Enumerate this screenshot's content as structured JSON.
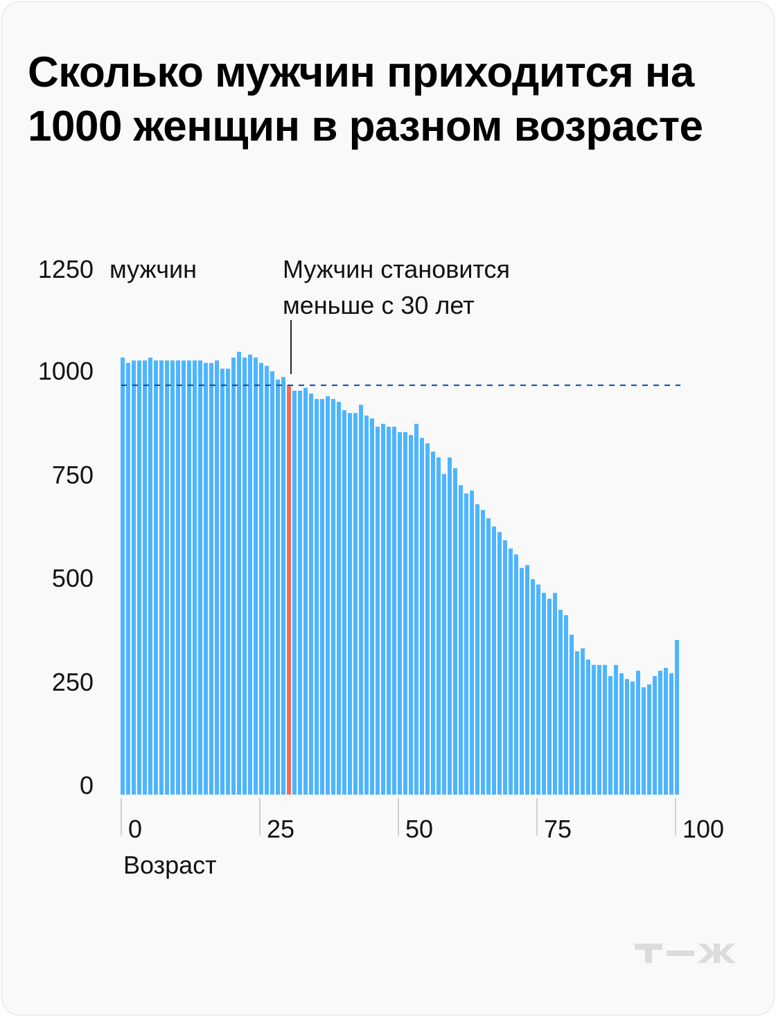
{
  "chart_data": {
    "type": "bar",
    "title": "Сколько мужчин приходится на 1000 женщин в разном возрасте",
    "ylabel": "мужчин",
    "xlabel": "Возраст",
    "ylim": [
      0,
      1250
    ],
    "xlim": [
      0,
      100
    ],
    "y_ticks": [
      "0",
      "250",
      "500",
      "750",
      "1000",
      "1250"
    ],
    "x_ticks": [
      "0",
      "25",
      "50",
      "75",
      "100"
    ],
    "grid": false,
    "annotation": {
      "line1": "Мужчин становится",
      "line2": "меньше с 30 лет",
      "age": 30
    },
    "reference_value": 988,
    "highlight_index": 30,
    "x": [
      0,
      1,
      2,
      3,
      4,
      5,
      6,
      7,
      8,
      9,
      10,
      11,
      12,
      13,
      14,
      15,
      16,
      17,
      18,
      19,
      20,
      21,
      22,
      23,
      24,
      25,
      26,
      27,
      28,
      29,
      30,
      31,
      32,
      33,
      34,
      35,
      36,
      37,
      38,
      39,
      40,
      41,
      42,
      43,
      44,
      45,
      46,
      47,
      48,
      49,
      50,
      51,
      52,
      53,
      54,
      55,
      56,
      57,
      58,
      59,
      60,
      61,
      62,
      63,
      64,
      65,
      66,
      67,
      68,
      69,
      70,
      71,
      72,
      73,
      74,
      75,
      76,
      77,
      78,
      79,
      80,
      81,
      82,
      83,
      84,
      85,
      86,
      87,
      88,
      89,
      90,
      91,
      92,
      93,
      94,
      95,
      96,
      97,
      98,
      99,
      100
    ],
    "values": [
      1055,
      1042,
      1048,
      1048,
      1048,
      1055,
      1048,
      1048,
      1048,
      1048,
      1048,
      1048,
      1048,
      1048,
      1048,
      1042,
      1042,
      1048,
      1028,
      1028,
      1055,
      1069,
      1055,
      1062,
      1055,
      1042,
      1035,
      1022,
      1002,
      1008,
      988,
      975,
      975,
      982,
      968,
      955,
      955,
      962,
      955,
      948,
      928,
      921,
      921,
      941,
      915,
      908,
      888,
      895,
      888,
      888,
      875,
      875,
      868,
      895,
      861,
      848,
      828,
      814,
      774,
      814,
      788,
      747,
      727,
      734,
      701,
      687,
      667,
      647,
      634,
      614,
      594,
      580,
      547,
      554,
      520,
      507,
      487,
      473,
      487,
      446,
      433,
      386,
      346,
      353,
      326,
      313,
      313,
      313,
      286,
      313,
      293,
      279,
      273,
      299,
      259,
      266,
      286,
      299,
      306,
      293,
      373
    ],
    "colors": {
      "bar": "#4db5ff",
      "highlight": "#f26b5b",
      "reference_line": "#0b4a9c",
      "background": "#f9f9f9"
    }
  },
  "logo": "т—ж"
}
